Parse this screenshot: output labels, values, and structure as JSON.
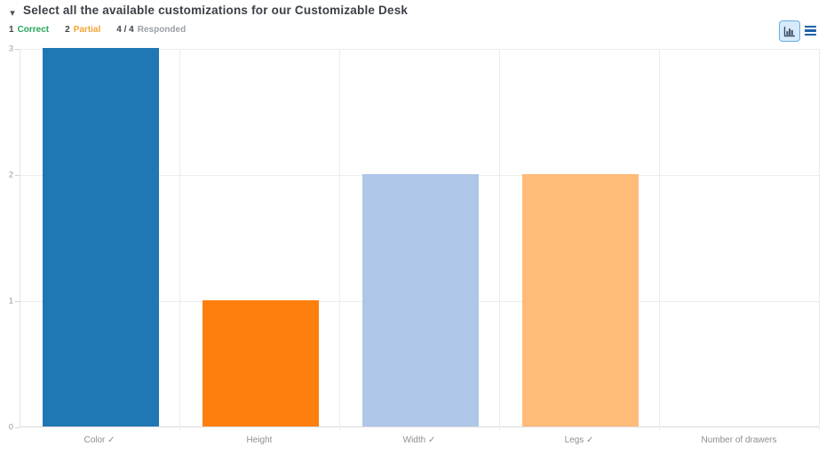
{
  "header": {
    "collapse_caret": "▾",
    "title": "Select all the available customizations for our Customizable Desk"
  },
  "stats": {
    "correct_count": "1",
    "correct_label": "Correct",
    "partial_count": "2",
    "partial_label": "Partial",
    "responded_count": "4 / 4",
    "responded_label": "Responded"
  },
  "toolbar": {
    "chart_view_selected": true,
    "chart_button_border": "#66aee6",
    "chart_button_bg": "#d8eaf9",
    "list_icon_color": "#2262a9"
  },
  "chart_data": {
    "type": "bar",
    "title": "",
    "xlabel": "",
    "ylabel": "",
    "categories": [
      "Color ✓",
      "Height",
      "Width ✓",
      "Legs ✓",
      "Number of drawers"
    ],
    "values": [
      3,
      1,
      2,
      2,
      0
    ],
    "bar_colors": [
      "#1f77b4",
      "#ff7f0e",
      "#aec7e8",
      "#ffbb78",
      null
    ],
    "ylim": [
      0,
      3
    ],
    "yticks": [
      "0",
      "1",
      "2",
      "3"
    ],
    "grid": true,
    "legend": "none"
  },
  "colors": {
    "correct_green": "#26a65b",
    "partial_amber": "#f2a536",
    "stat_dark": "#3f444c",
    "muted_gray": "#9aa0a6",
    "gridline": "#ececec",
    "axis_text": "#9b9b9b"
  }
}
